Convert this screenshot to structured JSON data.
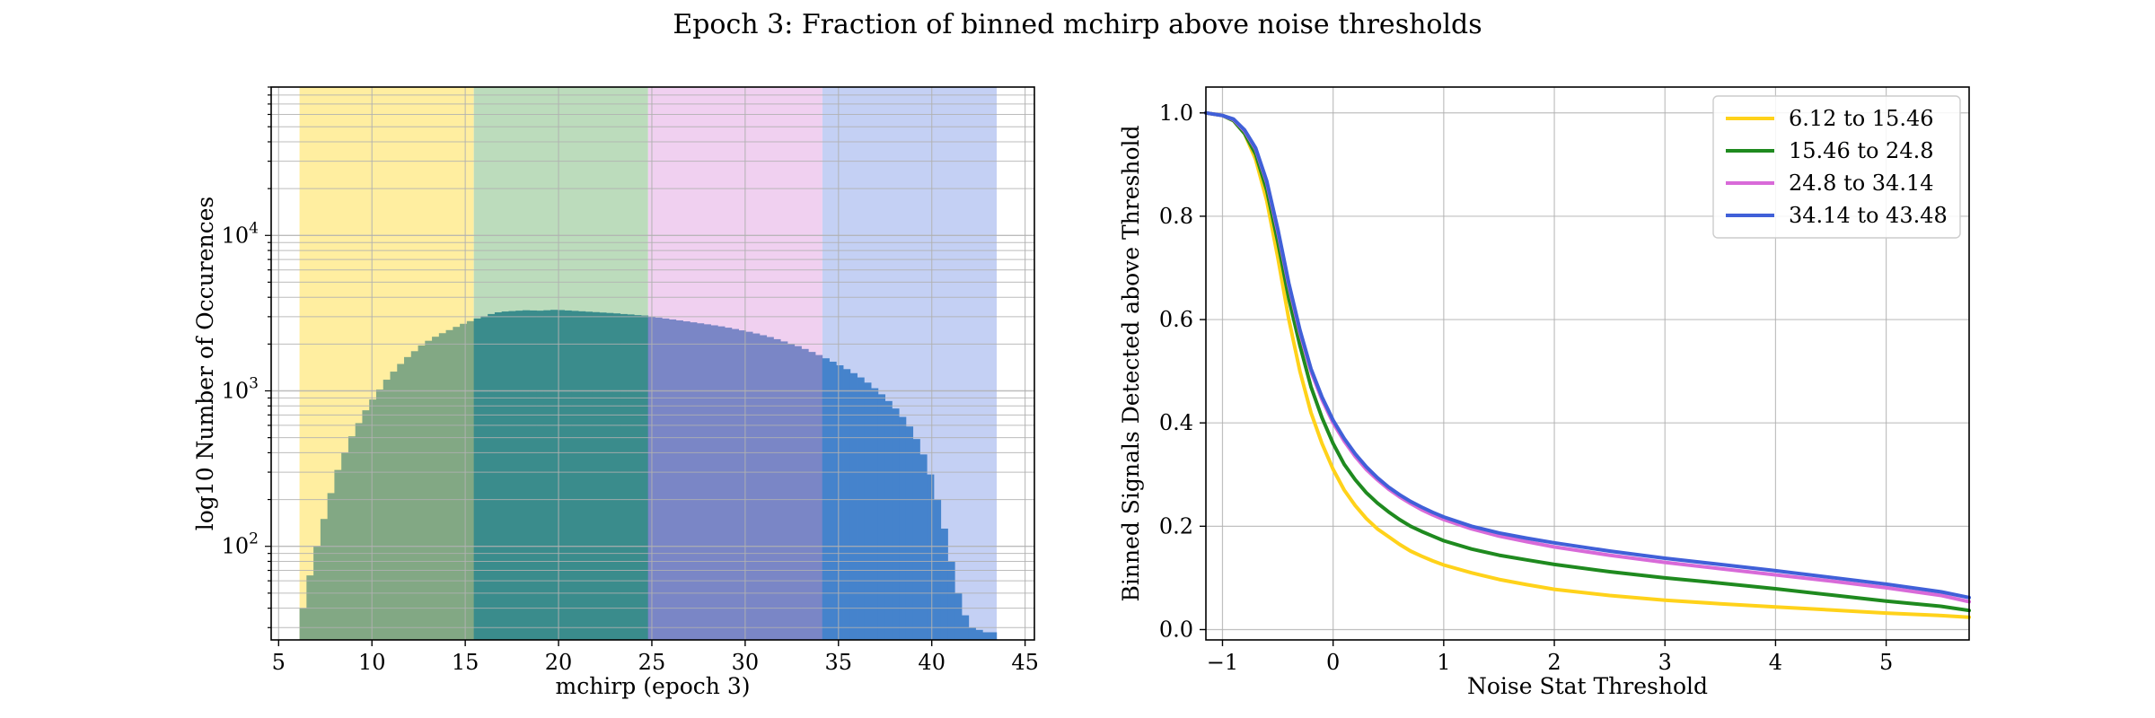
{
  "figure": {
    "title": "Epoch 3: Fraction of binned mchirp above noise thresholds"
  },
  "chart_data": [
    {
      "type": "bar",
      "subtype": "histogram",
      "xlabel": "mchirp (epoch 3)",
      "ylabel": "log10 Number of Occurences",
      "xlim": [
        4.6,
        45.5
      ],
      "ylim": [
        25,
        90000
      ],
      "yscale": "log",
      "grid": true,
      "xticks": [
        5,
        10,
        15,
        20,
        25,
        30,
        35,
        40,
        45
      ],
      "xtick_labels": [
        "5",
        "10",
        "15",
        "20",
        "25",
        "30",
        "35",
        "40",
        "45"
      ],
      "yticks": [
        100,
        1000,
        10000
      ],
      "ytick_labels": [
        {
          "base": "10",
          "exp": "2"
        },
        {
          "base": "10",
          "exp": "3"
        },
        {
          "base": "10",
          "exp": "4"
        }
      ],
      "bands": [
        {
          "from": 6.12,
          "to": 15.46,
          "color": "#ffeea0"
        },
        {
          "from": 15.46,
          "to": 24.8,
          "color": "#bcdcbc"
        },
        {
          "from": 24.8,
          "to": 34.14,
          "color": "#f0d0f0"
        },
        {
          "from": 34.14,
          "to": 43.48,
          "color": "#c4d0f4"
        }
      ],
      "bar_colors": [
        "#82a884",
        "#3a8c8c",
        "#7a86c6",
        "#4583cc"
      ],
      "bin_start": 6.12,
      "bin_width": 0.3735,
      "counts": [
        40,
        65,
        100,
        150,
        220,
        310,
        400,
        510,
        620,
        750,
        880,
        1020,
        1180,
        1330,
        1490,
        1650,
        1800,
        1960,
        2100,
        2230,
        2350,
        2460,
        2580,
        2700,
        2810,
        2920,
        3020,
        3120,
        3200,
        3240,
        3260,
        3280,
        3300,
        3290,
        3280,
        3300,
        3320,
        3310,
        3290,
        3270,
        3250,
        3230,
        3210,
        3190,
        3170,
        3150,
        3120,
        3100,
        3070,
        3050,
        3000,
        2960,
        2920,
        2880,
        2840,
        2800,
        2760,
        2720,
        2680,
        2640,
        2600,
        2550,
        2500,
        2450,
        2400,
        2340,
        2280,
        2220,
        2150,
        2080,
        2010,
        1940,
        1860,
        1780,
        1700,
        1620,
        1540,
        1460,
        1380,
        1300,
        1220,
        1130,
        1040,
        950,
        860,
        770,
        680,
        590,
        490,
        390,
        290,
        200,
        130,
        80,
        50,
        36,
        30,
        29,
        28,
        28
      ]
    },
    {
      "type": "line",
      "xlabel": "Noise Stat Threshold",
      "ylabel": "Binned Signals Detected above Threshold",
      "xlim": [
        -1.15,
        5.75
      ],
      "ylim": [
        -0.02,
        1.05
      ],
      "grid": true,
      "legend": "top-right",
      "xticks": [
        -1,
        0,
        1,
        2,
        3,
        4,
        5
      ],
      "xtick_labels": [
        "−1",
        "0",
        "1",
        "2",
        "3",
        "4",
        "5"
      ],
      "yticks": [
        0.0,
        0.2,
        0.4,
        0.6,
        0.8,
        1.0
      ],
      "ytick_labels": [
        "0.0",
        "0.2",
        "0.4",
        "0.6",
        "0.8",
        "1.0"
      ],
      "x": [
        -1.15,
        -1.0,
        -0.9,
        -0.8,
        -0.7,
        -0.6,
        -0.5,
        -0.4,
        -0.3,
        -0.2,
        -0.1,
        0.0,
        0.1,
        0.2,
        0.3,
        0.4,
        0.5,
        0.6,
        0.7,
        0.8,
        0.9,
        1.0,
        1.25,
        1.5,
        1.75,
        2.0,
        2.5,
        3.0,
        3.5,
        4.0,
        4.5,
        5.0,
        5.5,
        5.75
      ],
      "series": [
        {
          "name": "6.12 to 15.46",
          "color": "#ffd21a",
          "values": [
            1.0,
            0.995,
            0.985,
            0.96,
            0.91,
            0.83,
            0.72,
            0.6,
            0.5,
            0.42,
            0.36,
            0.31,
            0.27,
            0.24,
            0.215,
            0.195,
            0.18,
            0.165,
            0.152,
            0.142,
            0.133,
            0.125,
            0.11,
            0.097,
            0.087,
            0.078,
            0.066,
            0.057,
            0.05,
            0.044,
            0.038,
            0.032,
            0.027,
            0.024
          ]
        },
        {
          "name": "15.46 to 24.8",
          "color": "#1f8a1f",
          "values": [
            1.0,
            0.995,
            0.985,
            0.96,
            0.92,
            0.85,
            0.75,
            0.64,
            0.55,
            0.47,
            0.41,
            0.36,
            0.32,
            0.29,
            0.265,
            0.245,
            0.228,
            0.213,
            0.2,
            0.19,
            0.181,
            0.172,
            0.156,
            0.144,
            0.135,
            0.126,
            0.112,
            0.1,
            0.09,
            0.079,
            0.067,
            0.055,
            0.045,
            0.037
          ]
        },
        {
          "name": "24.8 to 34.14",
          "color": "#d86ad8",
          "values": [
            1.0,
            0.995,
            0.987,
            0.965,
            0.93,
            0.865,
            0.77,
            0.665,
            0.575,
            0.5,
            0.445,
            0.4,
            0.365,
            0.335,
            0.31,
            0.29,
            0.272,
            0.257,
            0.244,
            0.232,
            0.222,
            0.213,
            0.195,
            0.181,
            0.17,
            0.16,
            0.144,
            0.13,
            0.118,
            0.106,
            0.094,
            0.081,
            0.066,
            0.054
          ]
        },
        {
          "name": "34.14 to 43.48",
          "color": "#4060d8",
          "values": [
            1.0,
            0.995,
            0.988,
            0.967,
            0.932,
            0.868,
            0.775,
            0.67,
            0.58,
            0.505,
            0.45,
            0.405,
            0.37,
            0.34,
            0.315,
            0.294,
            0.276,
            0.261,
            0.248,
            0.237,
            0.227,
            0.218,
            0.2,
            0.187,
            0.177,
            0.168,
            0.152,
            0.138,
            0.126,
            0.114,
            0.101,
            0.088,
            0.073,
            0.062
          ]
        }
      ]
    }
  ]
}
